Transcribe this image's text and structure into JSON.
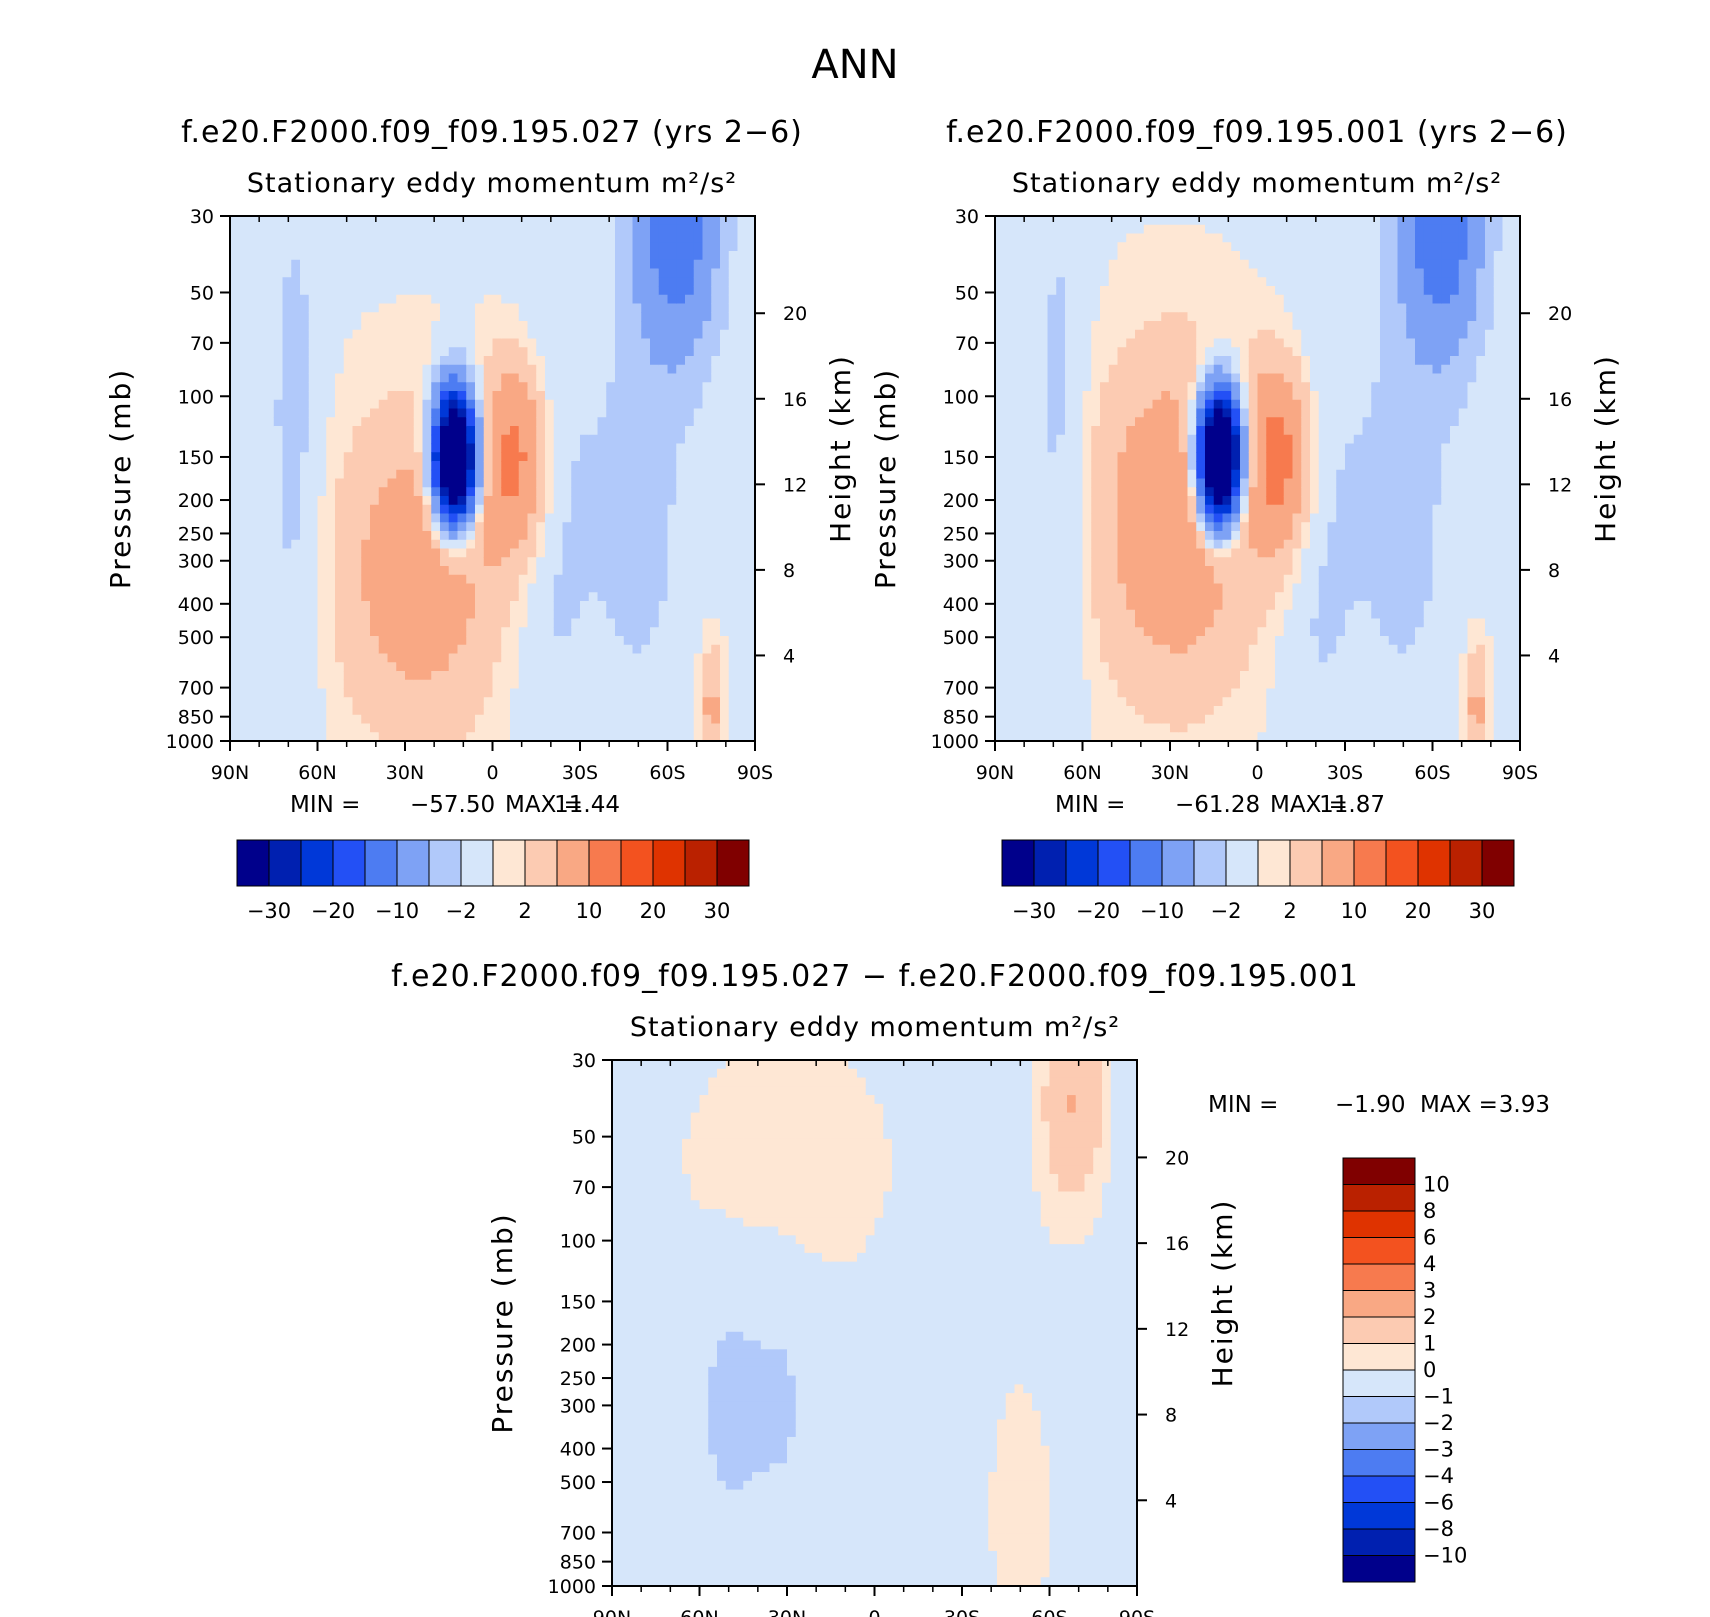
{
  "figure": {
    "title": "ANN"
  },
  "colormaps": {
    "main": [
      "#00008b",
      "#0020b0",
      "#0038d8",
      "#2350f5",
      "#4d7cf2",
      "#7ea2f5",
      "#b1c9fa",
      "#d6e6fa",
      "#fee7d4",
      "#fccbb2",
      "#f9a884",
      "#f77a4e",
      "#f3521f",
      "#df3300",
      "#ba2100",
      "#800000"
    ],
    "diff": [
      "#00008b",
      "#0020b0",
      "#0038d8",
      "#2350f5",
      "#4d7cf2",
      "#7ea2f5",
      "#b1c9fa",
      "#d6e6fa",
      "#fee7d4",
      "#fccbb2",
      "#f9a884",
      "#f77a4e",
      "#f3521f",
      "#df3300",
      "#ba2100",
      "#800000"
    ]
  },
  "chart_data": [
    {
      "id": "panel-027",
      "type": "heatmap",
      "title": "f.e20.F2000.f09_f09.195.027 (yrs 2−6)",
      "subtitle": "Stationary eddy momentum",
      "units": "m²/s²",
      "xlabel": "",
      "ylabel": "Pressure (mb)",
      "y2label": "Height (km)",
      "x_ticks": [
        "90N",
        "60N",
        "30N",
        "0",
        "30S",
        "60S",
        "90S"
      ],
      "y_ticks": [
        "30",
        "50",
        "70",
        "100",
        "150",
        "200",
        "250",
        "300",
        "400",
        "500",
        "700",
        "850",
        "1000"
      ],
      "y2_ticks": [
        "20",
        "16",
        "12",
        "8",
        "4"
      ],
      "stats": {
        "min_label": "MIN =",
        "min": "−57.50",
        "max_label": "MAX =",
        "max": "11.44"
      },
      "colorbar": {
        "orientation": "horizontal",
        "labels": [
          "−30",
          "−20",
          "−10",
          "−2",
          "2",
          "10",
          "20",
          "30"
        ]
      },
      "features": [
        {
          "lat": 25,
          "p": 320,
          "value": 8,
          "scale_lat": 20,
          "scale_p": 0.75
        },
        {
          "lat": -8,
          "p": 150,
          "value": 11.4,
          "scale_lat": 8,
          "scale_p": 0.45
        },
        {
          "lat": 13,
          "p": 150,
          "value": -57.5,
          "scale_lat": 5,
          "scale_p": 0.3
        },
        {
          "lat": -20,
          "p": 220,
          "value": -3,
          "scale_lat": 10,
          "scale_p": 1.2
        },
        {
          "lat": -63,
          "p": 32,
          "value": -14,
          "scale_lat": 10,
          "scale_p": 0.6
        },
        {
          "lat": -50,
          "p": 220,
          "value": -3,
          "scale_lat": 12,
          "scale_p": 1.0
        },
        {
          "lat": 68,
          "p": 150,
          "value": -3,
          "scale_lat": 7,
          "scale_p": 1.5
        },
        {
          "lat": -75,
          "p": 800,
          "value": 6,
          "scale_lat": 3,
          "scale_p": 0.3
        }
      ]
    },
    {
      "id": "panel-001",
      "type": "heatmap",
      "title": "f.e20.F2000.f09_f09.195.001 (yrs 2−6)",
      "subtitle": "Stationary eddy momentum",
      "units": "m²/s²",
      "xlabel": "",
      "ylabel": "Pressure (mb)",
      "y2label": "Height (km)",
      "x_ticks": [
        "90N",
        "60N",
        "30N",
        "0",
        "30S",
        "60S",
        "90S"
      ],
      "y_ticks": [
        "30",
        "50",
        "70",
        "100",
        "150",
        "200",
        "250",
        "300",
        "400",
        "500",
        "700",
        "850",
        "1000"
      ],
      "y2_ticks": [
        "20",
        "16",
        "12",
        "8",
        "4"
      ],
      "stats": {
        "min_label": "MIN =",
        "min": "−61.28",
        "max_label": "MAX =",
        "max": "11.87"
      },
      "colorbar": {
        "orientation": "horizontal",
        "labels": [
          "−30",
          "−20",
          "−10",
          "−2",
          "2",
          "10",
          "20",
          "30"
        ]
      },
      "features": [
        {
          "lat": 28,
          "p": 230,
          "value": 9,
          "scale_lat": 20,
          "scale_p": 0.8
        },
        {
          "lat": -8,
          "p": 150,
          "value": 11.8,
          "scale_lat": 8,
          "scale_p": 0.45
        },
        {
          "lat": 13,
          "p": 150,
          "value": -61.3,
          "scale_lat": 5,
          "scale_p": 0.3
        },
        {
          "lat": -20,
          "p": 220,
          "value": -3,
          "scale_lat": 10,
          "scale_p": 1.2
        },
        {
          "lat": -63,
          "p": 32,
          "value": -14,
          "scale_lat": 10,
          "scale_p": 0.6
        },
        {
          "lat": -50,
          "p": 220,
          "value": -3,
          "scale_lat": 12,
          "scale_p": 1.0
        },
        {
          "lat": 68,
          "p": 150,
          "value": -3,
          "scale_lat": 7,
          "scale_p": 1.5
        },
        {
          "lat": -75,
          "p": 800,
          "value": 6,
          "scale_lat": 3,
          "scale_p": 0.3
        }
      ]
    },
    {
      "id": "panel-diff",
      "type": "heatmap",
      "title": "f.e20.F2000.f09_f09.195.027 − f.e20.F2000.f09_f09.195.001",
      "subtitle": "Stationary eddy momentum",
      "units": "m²/s²",
      "xlabel": "",
      "ylabel": "Pressure (mb)",
      "y2label": "Height (km)",
      "x_ticks": [
        "90N",
        "60N",
        "30N",
        "0",
        "30S",
        "60S",
        "90S"
      ],
      "y_ticks": [
        "30",
        "50",
        "70",
        "100",
        "150",
        "200",
        "250",
        "300",
        "400",
        "500",
        "700",
        "850",
        "1000"
      ],
      "y2_ticks": [
        "20",
        "16",
        "12",
        "8",
        "4"
      ],
      "stats": {
        "min_label": "MIN =",
        "min": "−1.90",
        "max_label": "MAX =",
        "max": "3.93"
      },
      "colorbar": {
        "orientation": "vertical",
        "labels": [
          "10",
          "8",
          "6",
          "4",
          "3",
          "2",
          "1",
          "0",
          "−1",
          "−2",
          "−3",
          "−4",
          "−6",
          "−8",
          "−10"
        ]
      },
      "features": [
        {
          "lat": 50,
          "p": 300,
          "value": -1.5,
          "scale_lat": 8,
          "scale_p": 0.6
        },
        {
          "lat": 32,
          "p": 280,
          "value": -1.2,
          "scale_lat": 8,
          "scale_p": 0.6
        },
        {
          "lat": -68,
          "p": 40,
          "value": 2,
          "scale_lat": 8,
          "scale_p": 0.5
        },
        {
          "lat": 30,
          "p": 60,
          "value": 0.8,
          "scale_lat": 30,
          "scale_p": 0.7
        },
        {
          "lat": -50,
          "p": 600,
          "value": 0.5,
          "scale_lat": 15,
          "scale_p": 1.2
        }
      ]
    }
  ]
}
